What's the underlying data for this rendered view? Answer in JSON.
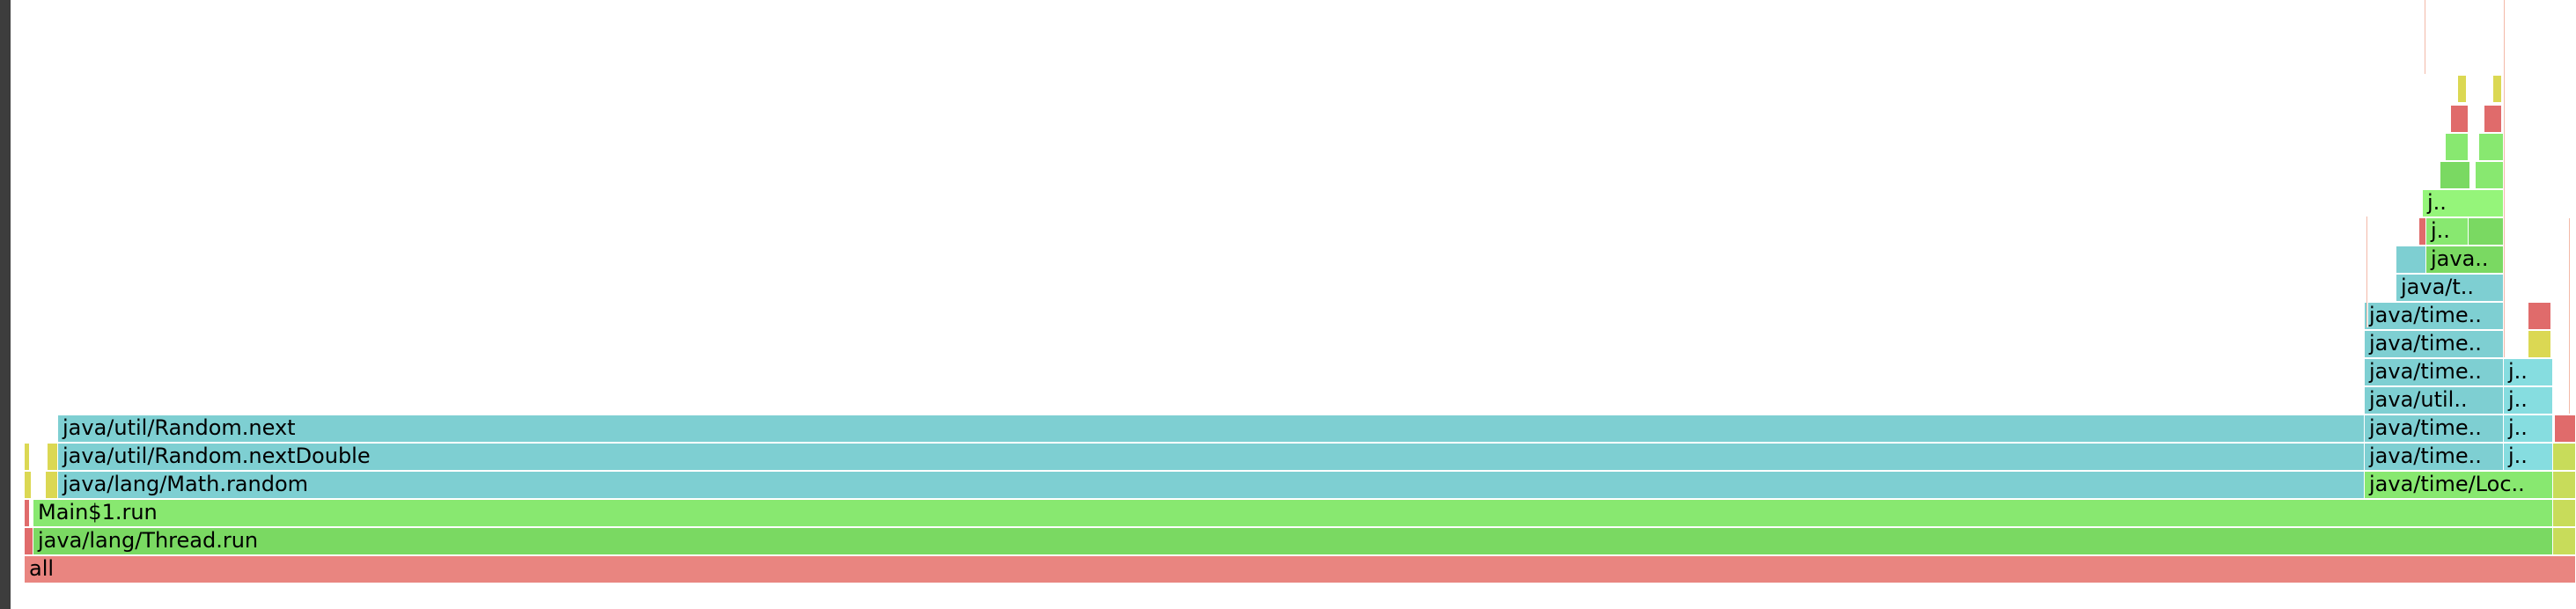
{
  "flamegraph": {
    "frames": {
      "all": "all",
      "thread_run": "java/lang/Thread.run",
      "main_run": "Main$1.run",
      "math_random": "java/lang/Math.random",
      "random_next_double": "java/util/Random.nextDouble",
      "random_next": "java/util/Random.next",
      "loc": "java/time/Loc..",
      "time_a": "java/time..",
      "time_b": "java/time..",
      "util": "java/util..",
      "time_c": "java/time..",
      "time_d": "java/time..",
      "time_e": "java/time..",
      "java_t": "java/t..",
      "java_dots": "java..",
      "j_a": "j..",
      "j_b": "j..",
      "j_side_1": "j..",
      "j_side_2": "j..",
      "j_side_3": "j..",
      "j_side_4": "j.."
    },
    "colors": {
      "root": "#e98580",
      "jit_green": "#88e870",
      "java_cyan": "#7ecfd2",
      "native_red": "#e06b6b",
      "inlined_yellow": "#dbd853"
    }
  }
}
